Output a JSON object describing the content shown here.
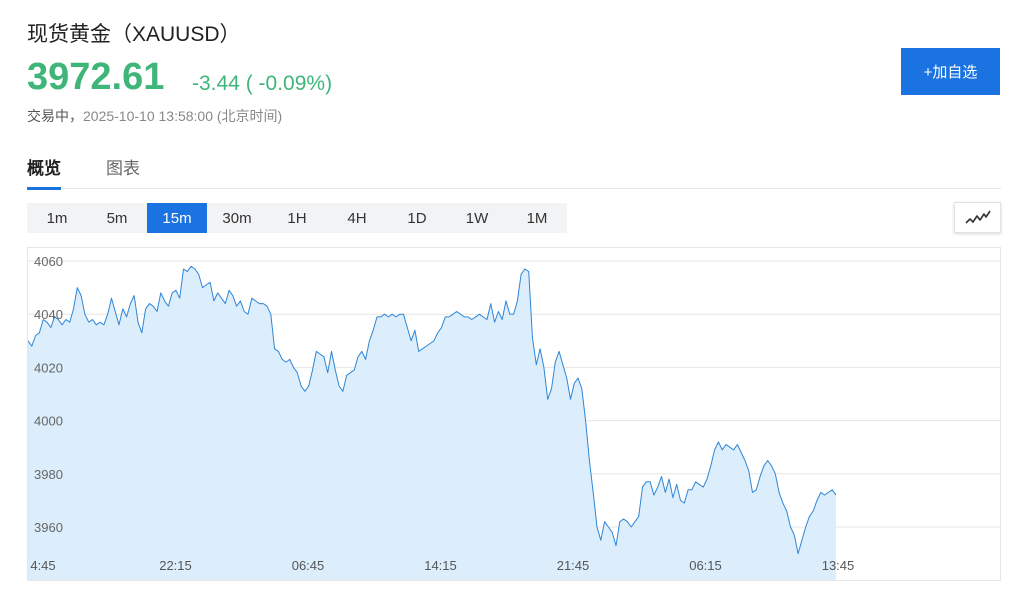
{
  "header": {
    "title": "现货黄金（XAUUSD）",
    "price": "3972.61",
    "change": "-3.44 ( -0.09%)",
    "status": "交易中，",
    "timestamp": "2025-10-10 13:58:00 (北京时间)",
    "add_watchlist_label": "+加自选"
  },
  "tabs": [
    {
      "label": "概览",
      "active": true
    },
    {
      "label": "图表",
      "active": false
    }
  ],
  "periods": [
    {
      "label": "1m"
    },
    {
      "label": "5m"
    },
    {
      "label": "15m",
      "active": true
    },
    {
      "label": "30m"
    },
    {
      "label": "1H"
    },
    {
      "label": "4H"
    },
    {
      "label": "1D"
    },
    {
      "label": "1W"
    },
    {
      "label": "1M"
    }
  ],
  "chart_type_icon": "line-chart-icon",
  "colors": {
    "up": "#3fb57a",
    "accent": "#1a73e0",
    "line": "#2f86d6",
    "fill": "#dcedfb",
    "grid": "#e6e6e6"
  },
  "chart_data": {
    "type": "area",
    "ylim": [
      3950,
      4065
    ],
    "yticks": [
      4060,
      4040,
      4020,
      4000,
      3980,
      3960
    ],
    "xticks": [
      "4:45",
      "22:15",
      "06:45",
      "14:15",
      "21:45",
      "06:15",
      "13:45"
    ],
    "grid": true,
    "series": [
      {
        "values": [
          4030,
          4028,
          4032,
          4033,
          4038,
          4037,
          4035,
          4039,
          4038,
          4036,
          4038,
          4037,
          4042,
          4050,
          4047,
          4040,
          4037,
          4038,
          4036,
          4037,
          4036,
          4040,
          4046,
          4041,
          4036,
          4042,
          4039,
          4044,
          4047,
          4037,
          4033,
          4042,
          4044,
          4043,
          4041,
          4048,
          4045,
          4043,
          4048,
          4049,
          4046,
          4057,
          4056,
          4058,
          4057,
          4055,
          4050,
          4051,
          4052,
          4045,
          4048,
          4046,
          4044,
          4049,
          4047,
          4043,
          4045,
          4041,
          4040,
          4046,
          4045,
          4044,
          4044,
          4043,
          4040,
          4027,
          4026,
          4023,
          4022,
          4023,
          4020,
          4018,
          4013,
          4011,
          4013,
          4019,
          4026,
          4025,
          4024,
          4018,
          4026,
          4019,
          4013,
          4011,
          4017,
          4018,
          4019,
          4024,
          4026,
          4023,
          4030,
          4034,
          4039,
          4039,
          4040,
          4039,
          4040,
          4039,
          4040,
          4040,
          4035,
          4030,
          4034,
          4026,
          4027,
          4028,
          4029,
          4030,
          4033,
          4035,
          4039,
          4039,
          4040,
          4041,
          4040,
          4039,
          4039,
          4038,
          4039,
          4040,
          4039,
          4038,
          4044,
          4037,
          4041,
          4038,
          4045,
          4040,
          4040,
          4045,
          4055,
          4057,
          4056,
          4031,
          4021,
          4027,
          4020,
          4008,
          4012,
          4022,
          4026,
          4021,
          4016,
          4008,
          4014,
          4016,
          4012,
          4000,
          3985,
          3973,
          3960,
          3955,
          3962,
          3960,
          3958,
          3953,
          3962,
          3963,
          3962,
          3960,
          3962,
          3964,
          3975,
          3977,
          3977,
          3972,
          3975,
          3979,
          3973,
          3978,
          3971,
          3976,
          3970,
          3969,
          3974,
          3974,
          3977,
          3976,
          3975,
          3978,
          3983,
          3989,
          3992,
          3989,
          3991,
          3990,
          3989,
          3991,
          3988,
          3985,
          3981,
          3973,
          3974,
          3979,
          3983,
          3985,
          3983,
          3980,
          3973,
          3969,
          3966,
          3960,
          3957,
          3950,
          3955,
          3960,
          3964,
          3966,
          3970,
          3973,
          3972,
          3973,
          3974,
          3972
        ]
      }
    ]
  }
}
